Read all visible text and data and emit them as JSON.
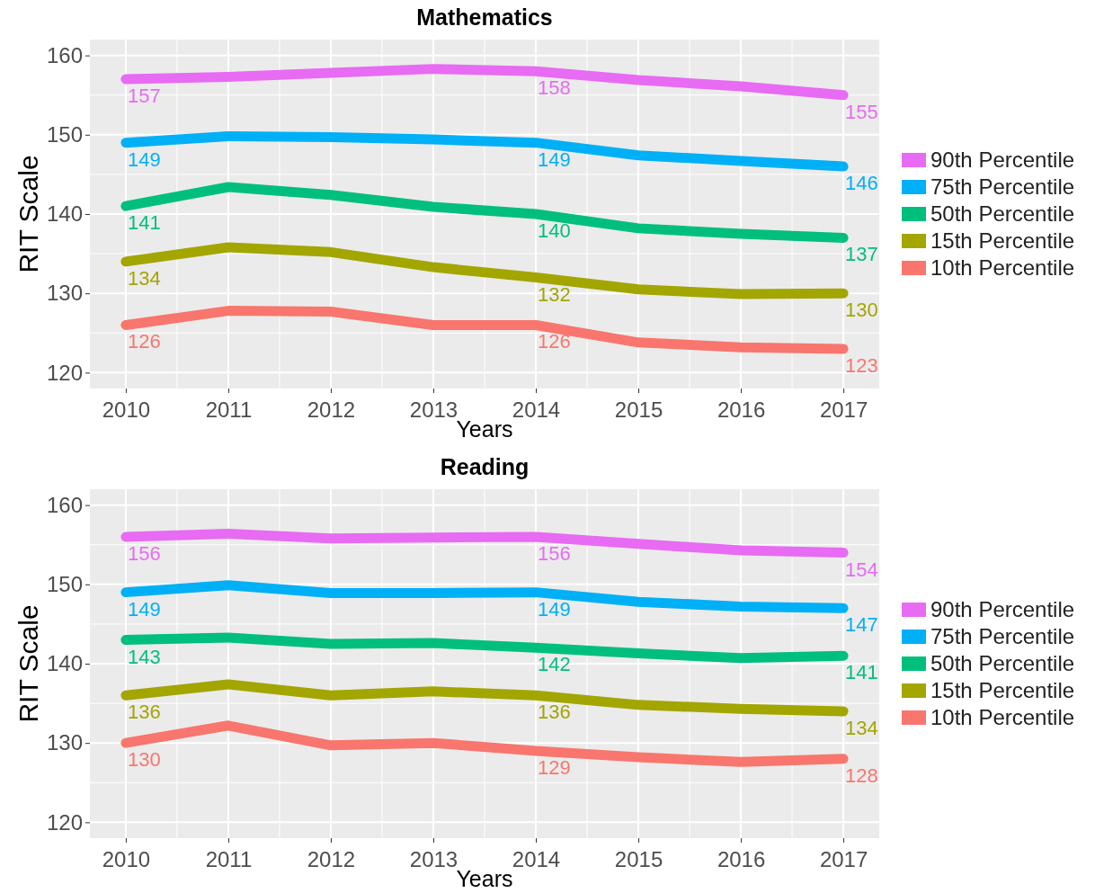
{
  "chart_data": [
    {
      "type": "line",
      "title": "Mathematics",
      "xlabel": "Years",
      "ylabel": "RIT Scale",
      "x": [
        2010,
        2011,
        2012,
        2013,
        2014,
        2015,
        2016,
        2017
      ],
      "xlim": [
        2009.65,
        2017.35
      ],
      "xticks": [
        2010,
        2011,
        2012,
        2013,
        2014,
        2015,
        2016,
        2017
      ],
      "ylim": [
        118,
        162
      ],
      "yticks": [
        120,
        130,
        140,
        150,
        160
      ],
      "grid": true,
      "legend": "right",
      "series": [
        {
          "name": "90th Percentile",
          "color": "#e76bf3",
          "values": [
            157,
            157.3,
            157.8,
            158.3,
            158,
            156.9,
            156.1,
            155
          ],
          "value_labels": [
            "157",
            null,
            null,
            null,
            "158",
            null,
            null,
            "155"
          ]
        },
        {
          "name": "75th Percentile",
          "color": "#00b0f6",
          "values": [
            149,
            149.8,
            149.7,
            149.4,
            149,
            147.4,
            146.7,
            146
          ],
          "value_labels": [
            "149",
            null,
            null,
            null,
            "149",
            null,
            null,
            "146"
          ]
        },
        {
          "name": "50th Percentile",
          "color": "#00bf7d",
          "values": [
            141,
            143.4,
            142.4,
            140.9,
            140,
            138.2,
            137.5,
            137
          ],
          "value_labels": [
            "141",
            null,
            null,
            null,
            "140",
            null,
            null,
            "137"
          ]
        },
        {
          "name": "15th Percentile",
          "color": "#a3a500",
          "values": [
            134,
            135.8,
            135.2,
            133.3,
            132,
            130.5,
            129.9,
            130
          ],
          "value_labels": [
            "134",
            null,
            null,
            null,
            "132",
            null,
            null,
            "130"
          ]
        },
        {
          "name": "10th Percentile",
          "color": "#f8766d",
          "values": [
            126,
            127.8,
            127.7,
            126,
            126,
            123.8,
            123.2,
            123
          ],
          "value_labels": [
            "126",
            null,
            null,
            null,
            "126",
            null,
            null,
            "123"
          ]
        }
      ]
    },
    {
      "type": "line",
      "title": "Reading",
      "xlabel": "Years",
      "ylabel": "RIT Scale",
      "x": [
        2010,
        2011,
        2012,
        2013,
        2014,
        2015,
        2016,
        2017
      ],
      "xlim": [
        2009.65,
        2017.35
      ],
      "xticks": [
        2010,
        2011,
        2012,
        2013,
        2014,
        2015,
        2016,
        2017
      ],
      "ylim": [
        118,
        162
      ],
      "yticks": [
        120,
        130,
        140,
        150,
        160
      ],
      "grid": true,
      "legend": "right",
      "series": [
        {
          "name": "90th Percentile",
          "color": "#e76bf3",
          "values": [
            156,
            156.4,
            155.8,
            155.9,
            156,
            155.1,
            154.3,
            154
          ],
          "value_labels": [
            "156",
            null,
            null,
            null,
            "156",
            null,
            null,
            "154"
          ]
        },
        {
          "name": "75th Percentile",
          "color": "#00b0f6",
          "values": [
            149,
            149.9,
            148.9,
            148.9,
            149,
            147.8,
            147.2,
            147
          ],
          "value_labels": [
            "149",
            null,
            null,
            null,
            "149",
            null,
            null,
            "147"
          ]
        },
        {
          "name": "50th Percentile",
          "color": "#00bf7d",
          "values": [
            143,
            143.3,
            142.5,
            142.6,
            142,
            141.3,
            140.7,
            141
          ],
          "value_labels": [
            "143",
            null,
            null,
            null,
            "142",
            null,
            null,
            "141"
          ]
        },
        {
          "name": "15th Percentile",
          "color": "#a3a500",
          "values": [
            136,
            137.4,
            136,
            136.5,
            136,
            134.8,
            134.3,
            134
          ],
          "value_labels": [
            "136",
            null,
            null,
            null,
            "136",
            null,
            null,
            "134"
          ]
        },
        {
          "name": "10th Percentile",
          "color": "#f8766d",
          "values": [
            130,
            132.2,
            129.7,
            130,
            129,
            128.2,
            127.6,
            128
          ],
          "value_labels": [
            "130",
            null,
            null,
            null,
            "129",
            null,
            null,
            "128"
          ]
        }
      ]
    }
  ]
}
